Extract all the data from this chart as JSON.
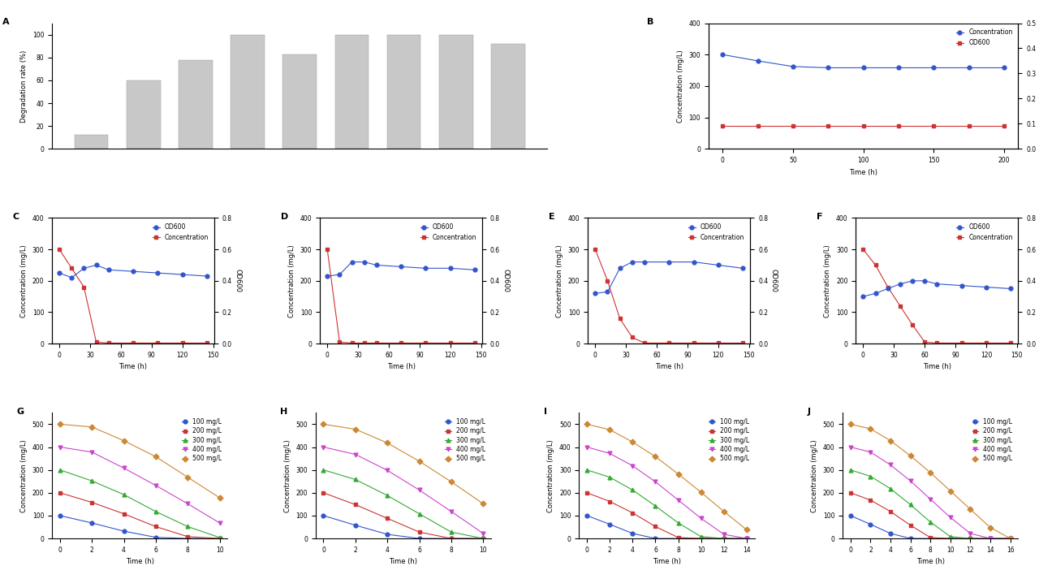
{
  "panel_A": {
    "bars": [
      12,
      60,
      78,
      100,
      83,
      100,
      100,
      100,
      92
    ],
    "bar_color": "#c8c8c8",
    "ylabel": "Degradation rate (%)",
    "ylim": [
      0,
      110
    ],
    "yticks": [
      0,
      20,
      40,
      60,
      80,
      100
    ]
  },
  "panel_B": {
    "time": [
      0,
      25,
      50,
      75,
      100,
      125,
      150,
      175,
      200
    ],
    "concentration": [
      300,
      280,
      262,
      258,
      258,
      258,
      258,
      258,
      258
    ],
    "od": [
      0.09,
      0.09,
      0.09,
      0.09,
      0.09,
      0.09,
      0.09,
      0.09,
      0.09
    ],
    "conc_color": "#3355cc",
    "od_color": "#cc3333",
    "conc_label": "Concentration",
    "od_label": "OD600",
    "ylabel_left": "Concentration (mg/L)",
    "ylabel_right": "OD600",
    "xlabel": "Time (h)",
    "ylim_left": [
      0,
      400
    ],
    "ylim_right": [
      0,
      0.5
    ],
    "yticks_left": [
      0,
      100,
      200,
      300,
      400
    ],
    "yticks_right": [
      0.0,
      0.1,
      0.2,
      0.3,
      0.4,
      0.5
    ],
    "xticks": [
      0,
      50,
      100,
      150,
      200
    ]
  },
  "panel_C": {
    "time": [
      0,
      12,
      24,
      36,
      48,
      72,
      96,
      120,
      144
    ],
    "concentration": [
      300,
      240,
      180,
      5,
      2,
      2,
      2,
      2,
      2
    ],
    "od": [
      0.45,
      0.42,
      0.48,
      0.5,
      0.47,
      0.46,
      0.45,
      0.44,
      0.43
    ],
    "od_label": "OD600",
    "conc_label": "Concentration",
    "conc_color": "#cc3333",
    "od_color": "#3355cc",
    "ylabel_left": "Concentration (mg/L)",
    "ylabel_right": "OD600",
    "xlabel": "Time (h)",
    "ylim_left": [
      0,
      400
    ],
    "ylim_right": [
      0,
      0.8
    ],
    "yticks_left": [
      0,
      100,
      200,
      300,
      400
    ],
    "yticks_right": [
      0.0,
      0.2,
      0.4,
      0.6,
      0.8
    ],
    "xticks": [
      0,
      30,
      60,
      90,
      120,
      150
    ]
  },
  "panel_D": {
    "time": [
      0,
      12,
      24,
      36,
      48,
      72,
      96,
      120,
      144
    ],
    "concentration": [
      300,
      5,
      2,
      2,
      2,
      2,
      2,
      2,
      2
    ],
    "od": [
      0.43,
      0.44,
      0.52,
      0.52,
      0.5,
      0.49,
      0.48,
      0.48,
      0.47
    ],
    "od_label": "OD600",
    "conc_label": "Concentration",
    "conc_color": "#cc3333",
    "od_color": "#3355cc",
    "ylabel_left": "Concentration (mg/L)",
    "ylabel_right": "OD600",
    "xlabel": "Time (h)",
    "ylim_left": [
      0,
      400
    ],
    "ylim_right": [
      0,
      0.8
    ],
    "yticks_left": [
      0,
      100,
      200,
      300,
      400
    ],
    "yticks_right": [
      0.0,
      0.2,
      0.4,
      0.6,
      0.8
    ],
    "xticks": [
      0,
      30,
      60,
      90,
      120,
      150
    ]
  },
  "panel_E": {
    "time": [
      0,
      12,
      24,
      36,
      48,
      72,
      96,
      120,
      144
    ],
    "concentration": [
      300,
      200,
      80,
      20,
      2,
      2,
      2,
      2,
      2
    ],
    "od": [
      0.32,
      0.33,
      0.48,
      0.52,
      0.52,
      0.52,
      0.52,
      0.5,
      0.48
    ],
    "od_label": "OD600",
    "conc_label": "Concentration",
    "conc_color": "#cc3333",
    "od_color": "#3355cc",
    "ylabel_left": "Concentration (mg/L)",
    "ylabel_right": "OD600",
    "xlabel": "Time (h)",
    "ylim_left": [
      0,
      400
    ],
    "ylim_right": [
      0,
      0.8
    ],
    "yticks_left": [
      0,
      100,
      200,
      300,
      400
    ],
    "yticks_right": [
      0.0,
      0.2,
      0.4,
      0.6,
      0.8
    ],
    "xticks": [
      0,
      30,
      60,
      90,
      120,
      150
    ]
  },
  "panel_F": {
    "time": [
      0,
      12,
      24,
      36,
      48,
      60,
      72,
      96,
      120,
      144
    ],
    "concentration": [
      300,
      250,
      180,
      120,
      60,
      5,
      2,
      2,
      2,
      2
    ],
    "od": [
      0.3,
      0.32,
      0.35,
      0.38,
      0.4,
      0.4,
      0.38,
      0.37,
      0.36,
      0.35
    ],
    "od_label": "OD600",
    "conc_label": "Concentration",
    "conc_color": "#cc3333",
    "od_color": "#3355cc",
    "ylabel_left": "Concentration (mg/L)",
    "ylabel_right": "OD600",
    "xlabel": "Time (h)",
    "ylim_left": [
      0,
      400
    ],
    "ylim_right": [
      0,
      0.8
    ],
    "yticks_left": [
      0,
      100,
      200,
      300,
      400
    ],
    "yticks_right": [
      0.0,
      0.2,
      0.4,
      0.6,
      0.8
    ],
    "xticks": [
      0,
      30,
      60,
      90,
      120,
      150
    ]
  },
  "panel_G": {
    "time_100": [
      0,
      2,
      4,
      6,
      8,
      10
    ],
    "time_200": [
      0,
      2,
      4,
      6,
      8,
      10
    ],
    "time_300": [
      0,
      2,
      4,
      6,
      8,
      10
    ],
    "time_400": [
      0,
      2,
      4,
      6,
      8,
      10
    ],
    "time_500": [
      0,
      2,
      4,
      6,
      8,
      10
    ],
    "conc_100": [
      100,
      68,
      32,
      5,
      0,
      0
    ],
    "conc_200": [
      200,
      158,
      108,
      52,
      8,
      0
    ],
    "conc_300": [
      300,
      252,
      192,
      118,
      52,
      4
    ],
    "conc_400": [
      400,
      378,
      308,
      232,
      152,
      68
    ],
    "conc_500": [
      500,
      488,
      428,
      358,
      268,
      178
    ],
    "colors": [
      "#3355cc",
      "#cc3333",
      "#33aa33",
      "#cc44cc",
      "#cc8833"
    ],
    "labels": [
      "100 mg/L",
      "200 mg/L",
      "300 mg/L",
      "400 mg/L",
      "500 mg/L"
    ],
    "markers": [
      "o",
      "s",
      "^",
      "v",
      "D"
    ],
    "ylabel": "Concentration (mg/L)",
    "xlabel": "Time (h)",
    "ylim": [
      0,
      550
    ],
    "yticks": [
      0,
      100,
      200,
      300,
      400,
      500
    ],
    "xticks": [
      0,
      2,
      4,
      6,
      8,
      10
    ]
  },
  "panel_H": {
    "time_100": [
      0,
      2,
      4,
      6,
      8,
      10
    ],
    "time_200": [
      0,
      2,
      4,
      6,
      8,
      10
    ],
    "time_300": [
      0,
      2,
      4,
      6,
      8,
      10
    ],
    "time_400": [
      0,
      2,
      4,
      6,
      8,
      10
    ],
    "time_500": [
      0,
      2,
      4,
      6,
      8,
      10
    ],
    "conc_100": [
      100,
      58,
      18,
      0,
      0,
      0
    ],
    "conc_200": [
      200,
      148,
      88,
      28,
      0,
      0
    ],
    "conc_300": [
      300,
      258,
      188,
      108,
      28,
      0
    ],
    "conc_400": [
      400,
      368,
      298,
      212,
      118,
      22
    ],
    "conc_500": [
      500,
      478,
      418,
      338,
      248,
      152
    ],
    "colors": [
      "#3355cc",
      "#cc3333",
      "#33aa33",
      "#cc44cc",
      "#cc8833"
    ],
    "labels": [
      "100 mg/L",
      "200 mg/L",
      "300 mg/L",
      "400 mg/L",
      "500 mg/L"
    ],
    "markers": [
      "o",
      "s",
      "^",
      "v",
      "D"
    ],
    "ylabel": "Concentration (mg/L)",
    "xlabel": "Time (h)",
    "ylim": [
      0,
      550
    ],
    "yticks": [
      0,
      100,
      200,
      300,
      400,
      500
    ],
    "xticks": [
      0,
      2,
      4,
      6,
      8,
      10
    ]
  },
  "panel_I": {
    "time_100": [
      0,
      2,
      4,
      6,
      8,
      10,
      12,
      14
    ],
    "time_200": [
      0,
      2,
      4,
      6,
      8,
      10,
      12,
      14
    ],
    "time_300": [
      0,
      2,
      4,
      6,
      8,
      10,
      12,
      14
    ],
    "time_400": [
      0,
      2,
      4,
      6,
      8,
      10,
      12,
      14
    ],
    "time_500": [
      0,
      2,
      4,
      6,
      8,
      10,
      12,
      14
    ],
    "conc_100": [
      100,
      62,
      22,
      0,
      0,
      0,
      0,
      0
    ],
    "conc_200": [
      200,
      162,
      112,
      52,
      4,
      0,
      0,
      0
    ],
    "conc_300": [
      300,
      268,
      212,
      142,
      68,
      8,
      0,
      0
    ],
    "conc_400": [
      400,
      372,
      318,
      248,
      168,
      88,
      18,
      0
    ],
    "conc_500": [
      500,
      476,
      422,
      358,
      282,
      202,
      118,
      38
    ],
    "colors": [
      "#3355cc",
      "#cc3333",
      "#33aa33",
      "#cc44cc",
      "#cc8833"
    ],
    "labels": [
      "100 mg/L",
      "200 mg/L",
      "300 mg/L",
      "400 mg/L",
      "500 mg/L"
    ],
    "markers": [
      "o",
      "s",
      "^",
      "v",
      "D"
    ],
    "ylabel": "Concentration (mg/L)",
    "xlabel": "Time (h)",
    "ylim": [
      0,
      550
    ],
    "yticks": [
      0,
      100,
      200,
      300,
      400,
      500
    ],
    "xticks": [
      0,
      2,
      4,
      6,
      8,
      10,
      12,
      14
    ]
  },
  "panel_J": {
    "time_100": [
      0,
      2,
      4,
      6,
      8,
      10,
      12,
      14,
      16
    ],
    "time_200": [
      0,
      2,
      4,
      6,
      8,
      10,
      12,
      14,
      16
    ],
    "time_300": [
      0,
      2,
      4,
      6,
      8,
      10,
      12,
      14,
      16
    ],
    "time_400": [
      0,
      2,
      4,
      6,
      8,
      10,
      12,
      14,
      16
    ],
    "time_500": [
      0,
      2,
      4,
      6,
      8,
      10,
      12,
      14,
      16
    ],
    "conc_100": [
      100,
      62,
      22,
      0,
      0,
      0,
      0,
      0,
      0
    ],
    "conc_200": [
      200,
      168,
      118,
      58,
      4,
      0,
      0,
      0,
      0
    ],
    "conc_300": [
      300,
      272,
      218,
      148,
      72,
      8,
      0,
      0,
      0
    ],
    "conc_400": [
      400,
      378,
      322,
      252,
      172,
      92,
      22,
      0,
      0
    ],
    "conc_500": [
      500,
      480,
      428,
      362,
      288,
      208,
      128,
      48,
      0
    ],
    "colors": [
      "#3355cc",
      "#cc3333",
      "#33aa33",
      "#cc44cc",
      "#cc8833"
    ],
    "labels": [
      "100 mg/L",
      "200 mg/L",
      "300 mg/L",
      "400 mg/L",
      "500 mg/L"
    ],
    "markers": [
      "o",
      "s",
      "^",
      "v",
      "D"
    ],
    "ylabel": "Concentration (mg/L)",
    "xlabel": "Time (h)",
    "ylim": [
      0,
      550
    ],
    "yticks": [
      0,
      100,
      200,
      300,
      400,
      500
    ],
    "xticks": [
      0,
      2,
      4,
      6,
      8,
      10,
      12,
      14,
      16
    ]
  },
  "font_size_label": 6,
  "font_size_tick": 5.5,
  "font_size_panel": 8,
  "font_size_legend": 5.5,
  "line_width": 0.8,
  "marker_size": 3.5
}
